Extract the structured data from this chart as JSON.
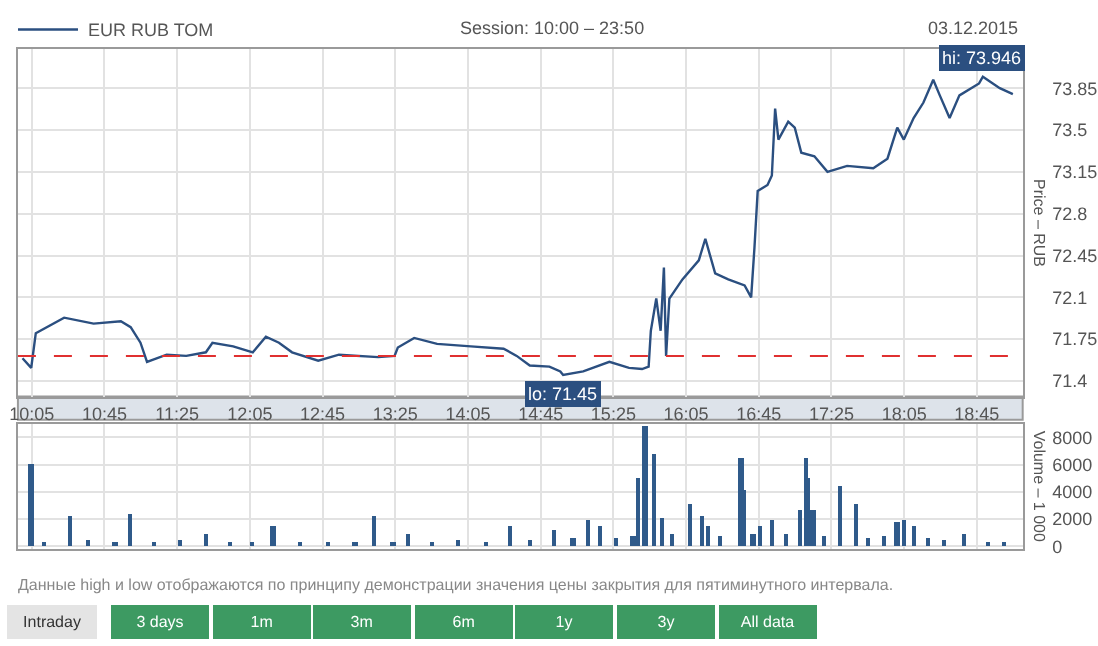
{
  "chart_data": [
    {
      "type": "line",
      "subtitle": "Session: 10:00 – 23:50",
      "ylabel": "Price – RUB",
      "legend": "top left",
      "grid": true,
      "series": [
        {
          "name": "EUR RUB TOM",
          "color": "#2b4f80",
          "x": [
            9.998,
            10.078,
            10.12,
            10.38,
            10.65,
            10.9,
            10.99,
            11.08,
            11.14,
            11.32,
            11.5,
            11.68,
            11.74,
            11.93,
            12.11,
            12.23,
            12.35,
            12.47,
            12.71,
            12.9,
            13.26,
            13.41,
            13.44,
            13.59,
            13.8,
            14.11,
            14.41,
            14.53,
            14.65,
            14.83,
            14.93,
            14.956,
            15.14,
            15.38,
            15.56,
            15.68,
            15.74,
            15.76,
            15.81,
            15.85,
            15.88,
            15.9,
            15.93,
            16.05,
            16.2,
            16.26,
            16.35,
            16.47,
            16.62,
            16.68,
            16.71,
            16.74,
            16.83,
            16.87,
            16.9,
            16.93,
            17.02,
            17.08,
            17.14,
            17.26,
            17.38,
            17.56,
            17.8,
            17.93,
            18.02,
            18.08,
            18.17,
            18.26,
            18.35,
            18.41,
            18.5,
            18.59,
            18.77,
            18.805,
            18.96,
            19.08
          ],
          "values": [
            71.59,
            71.51,
            71.8,
            71.93,
            71.88,
            71.9,
            71.85,
            71.72,
            71.56,
            71.62,
            71.61,
            71.64,
            71.72,
            71.69,
            71.64,
            71.77,
            71.72,
            71.64,
            71.57,
            71.62,
            71.6,
            71.61,
            71.68,
            71.76,
            71.71,
            71.69,
            71.67,
            71.61,
            71.53,
            71.52,
            71.48,
            71.45,
            71.48,
            71.56,
            71.51,
            71.5,
            71.52,
            71.82,
            72.09,
            71.82,
            72.35,
            71.61,
            72.09,
            72.25,
            72.41,
            72.59,
            72.3,
            72.25,
            72.2,
            72.1,
            72.51,
            72.99,
            73.04,
            73.12,
            73.68,
            73.42,
            73.57,
            73.52,
            73.31,
            73.28,
            73.15,
            73.2,
            73.18,
            73.26,
            73.52,
            73.42,
            73.6,
            73.73,
            73.92,
            73.79,
            73.6,
            73.79,
            73.89,
            73.946,
            73.85,
            73.8
          ]
        }
      ],
      "xlim": [
        9.956,
        19.17
      ],
      "xticks": [
        {
          "value": 10.0833,
          "label": "10:05"
        },
        {
          "value": 10.75,
          "label": "10:45"
        },
        {
          "value": 11.4167,
          "label": "11:25"
        },
        {
          "value": 12.0833,
          "label": "12:05"
        },
        {
          "value": 12.75,
          "label": "12:45"
        },
        {
          "value": 13.4167,
          "label": "13:25"
        },
        {
          "value": 14.0833,
          "label": "14:05"
        },
        {
          "value": 14.75,
          "label": "14:45"
        },
        {
          "value": 15.4167,
          "label": "15:25"
        },
        {
          "value": 16.0833,
          "label": "16:05"
        },
        {
          "value": 16.75,
          "label": "16:45"
        },
        {
          "value": 17.4167,
          "label": "17:25"
        },
        {
          "value": 18.0833,
          "label": "18:05"
        },
        {
          "value": 18.75,
          "label": "18:45"
        }
      ],
      "ylim": [
        71.27,
        74.18
      ],
      "yticks": [
        71.4,
        71.75,
        72.1,
        72.45,
        72.8,
        73.15,
        73.5,
        73.85
      ],
      "ref_lines": [
        {
          "axis": "y",
          "value": 71.61,
          "color": "#e03030",
          "line_style": "dashed"
        }
      ],
      "annotations": [
        "03.12.2015",
        {
          "text": "hi: 73.946",
          "x": 18.805,
          "y": 73.946
        },
        {
          "text": "lo: 71.45",
          "x": 14.956,
          "y": 71.45
        }
      ]
    },
    {
      "type": "bar",
      "ylabel": "Volume – 1 000",
      "grid": true,
      "tick_labels": "y",
      "series": [
        {
          "color": "#2f5a8a",
          "x": [
            10.08,
            10.2,
            10.44,
            10.6,
            10.85,
            10.98,
            11.2,
            11.45,
            11.68,
            11.9,
            12.1,
            12.3,
            12.55,
            12.8,
            13.05,
            13.23,
            13.4,
            13.53,
            13.75,
            14.0,
            14.25,
            14.48,
            14.65,
            14.88,
            15.05,
            15.18,
            15.29,
            15.45,
            15.6,
            15.65,
            15.71,
            15.79,
            15.87,
            15.95,
            16.13,
            16.23,
            16.29,
            16.4,
            16.59,
            16.62,
            16.7,
            16.77,
            16.87,
            17.0,
            17.13,
            17.18,
            17.21,
            17.25,
            17.35,
            17.5,
            17.64,
            17.75,
            17.9,
            18.02,
            18.08,
            18.17,
            18.3,
            18.45,
            18.64,
            18.85,
            19.0
          ],
          "values": [
            6100,
            400,
            2200,
            500,
            300,
            2400,
            400,
            500,
            1000,
            300,
            400,
            1500,
            400,
            300,
            400,
            2200,
            400,
            1000,
            300,
            500,
            400,
            1600,
            500,
            1200,
            700,
            2000,
            1500,
            600,
            800,
            5000,
            8800,
            6800,
            2100,
            900,
            3200,
            2200,
            1600,
            800,
            6500,
            4100,
            1000,
            1600,
            2000,
            900,
            2700,
            6500,
            5000,
            2700,
            800,
            4400,
            3200,
            700,
            800,
            1800,
            2000,
            1500,
            700,
            500,
            1000,
            400,
            300
          ]
        }
      ],
      "xlim": [
        9.956,
        19.17
      ],
      "xticks": [
        {
          "value": 10.0833,
          "label": null
        },
        {
          "value": 10.75,
          "label": null
        },
        {
          "value": 11.4167,
          "label": null
        },
        {
          "value": 12.0833,
          "label": null
        },
        {
          "value": 12.75,
          "label": null
        },
        {
          "value": 13.4167,
          "label": null
        },
        {
          "value": 14.0833,
          "label": null
        },
        {
          "value": 14.75,
          "label": null
        },
        {
          "value": 15.4167,
          "label": null
        },
        {
          "value": 16.0833,
          "label": null
        },
        {
          "value": 16.75,
          "label": null
        },
        {
          "value": 17.4167,
          "label": null
        },
        {
          "value": 18.0833,
          "label": null
        },
        {
          "value": 18.75,
          "label": null
        }
      ],
      "ylim": [
        -200,
        9000
      ],
      "yticks": [
        0,
        2000,
        4000,
        6000,
        8000
      ],
      "annotations": [
        "Данные high и low отображаются по принципу демонстрации значения цены закрытия для пятиминутного интервала.",
        "Intraday",
        "3 days",
        "1m",
        "3m",
        "6m",
        "1y",
        "3y",
        "All data"
      ]
    }
  ]
}
